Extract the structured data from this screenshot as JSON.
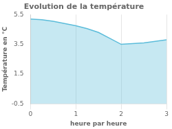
{
  "chart_data": {
    "type": "line",
    "title": "Evolution de la température",
    "xlabel": "heure par heure",
    "ylabel": "Température en °C",
    "x": [
      0,
      0.25,
      0.5,
      0.75,
      1.0,
      1.25,
      1.5,
      1.75,
      2.0,
      2.25,
      2.5,
      2.75,
      3.0
    ],
    "values": [
      5.2,
      5.15,
      5.05,
      4.9,
      4.75,
      4.55,
      4.3,
      3.9,
      3.5,
      3.55,
      3.6,
      3.7,
      3.8
    ],
    "color": "#5bbcda",
    "xlim": [
      0,
      3
    ],
    "xticks": [
      0,
      1,
      2,
      3
    ],
    "ylim": [
      -0.5,
      5.5
    ],
    "yticks": [
      -0.5,
      1.5,
      3.5,
      5.5
    ],
    "grid": "x"
  }
}
